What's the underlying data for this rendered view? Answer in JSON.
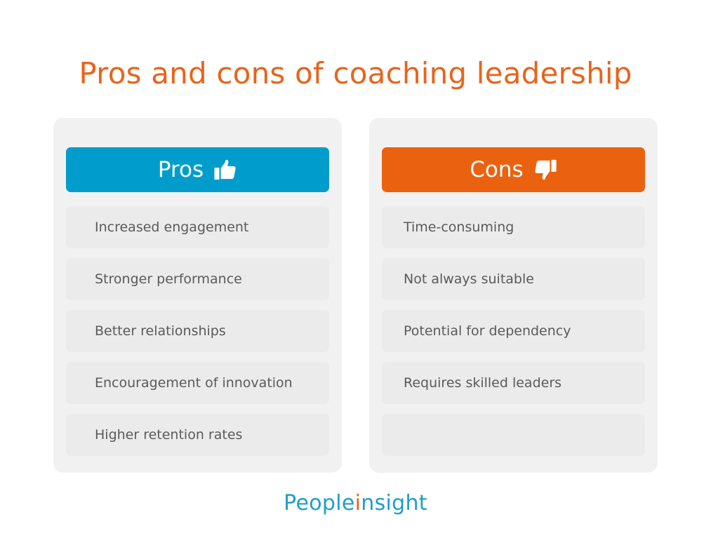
{
  "title": "Pros and cons of coaching leadership",
  "pros": {
    "label": "Pros",
    "icon": "thumbs-up-icon",
    "color": "#009dcc",
    "items": [
      "Increased engagement",
      "Stronger performance",
      "Better relationships",
      "Encouragement of innovation",
      "Higher retention rates"
    ]
  },
  "cons": {
    "label": "Cons",
    "icon": "thumbs-down-icon",
    "color": "#ea6210",
    "items": [
      "Time-consuming",
      "Not always suitable",
      "Potential for dependency",
      "Requires skilled leaders",
      ""
    ]
  },
  "logo": {
    "part1": "People",
    "part2": "i",
    "part3": "nsight"
  }
}
